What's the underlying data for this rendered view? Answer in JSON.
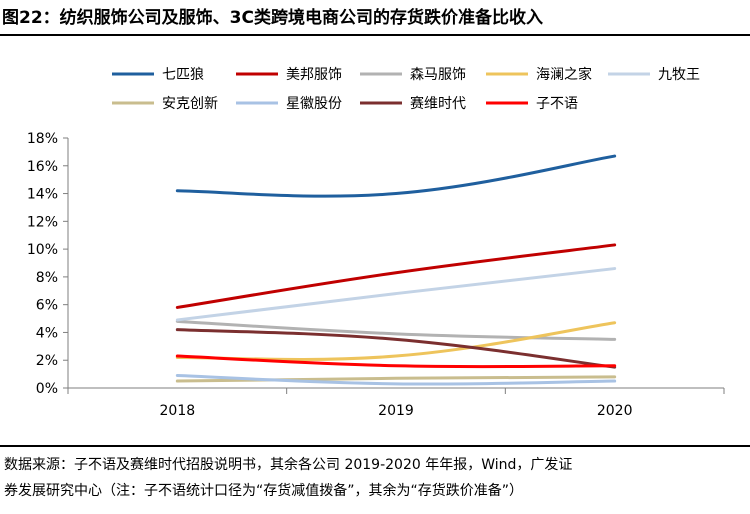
{
  "figure": {
    "title": "图22：纺织服饰公司及服饰、3C类跨境电商公司的存货跌价准备比收入",
    "source_line1": "数据来源：子不语及赛维时代招股说明书，其余各公司 2019-2020 年年报，Wind，广发证",
    "source_line2": "券发展研究中心（注：子不语统计口径为“存货减值拨备”，其余为“存货跌价准备”）"
  },
  "chart_data": {
    "type": "line",
    "title": "",
    "xlabel": "",
    "ylabel": "",
    "categories": [
      "2018",
      "2019",
      "2020"
    ],
    "ylim": [
      0,
      18
    ],
    "yticks": [
      0,
      2,
      4,
      6,
      8,
      10,
      12,
      14,
      16,
      18
    ],
    "ytick_labels": [
      "0%",
      "2%",
      "4%",
      "6%",
      "8%",
      "10%",
      "12%",
      "14%",
      "16%",
      "18%"
    ],
    "series": [
      {
        "name": "七匹狼",
        "color": "#1f5f9e",
        "values": [
          14.2,
          14.0,
          16.7
        ]
      },
      {
        "name": "美邦服饰",
        "color": "#c00000",
        "values": [
          5.8,
          8.3,
          10.3
        ]
      },
      {
        "name": "森马服饰",
        "color": "#b2b2b2",
        "values": [
          4.8,
          3.9,
          3.5
        ]
      },
      {
        "name": "海澜之家",
        "color": "#eec45c",
        "values": [
          2.2,
          2.3,
          4.7
        ]
      },
      {
        "name": "九牧王",
        "color": "#c3d3e6",
        "values": [
          4.9,
          6.8,
          8.6
        ]
      },
      {
        "name": "安克创新",
        "color": "#c9bd8e",
        "values": [
          0.5,
          0.7,
          0.8
        ]
      },
      {
        "name": "星徽股份",
        "color": "#a8c2e4",
        "values": [
          0.9,
          0.3,
          0.5
        ]
      },
      {
        "name": "赛维时代",
        "color": "#7b2f2f",
        "values": [
          4.2,
          3.5,
          1.5
        ]
      },
      {
        "name": "子不语",
        "color": "#ff0000",
        "values": [
          2.3,
          1.6,
          1.6
        ]
      }
    ]
  }
}
